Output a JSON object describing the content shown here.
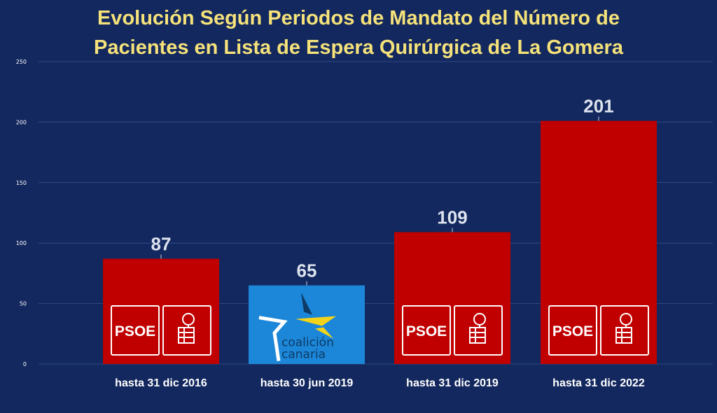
{
  "chart_data": {
    "type": "bar",
    "title_lines": [
      "Evolución Según Periodos de Mandato del Número de",
      "Pacientes en Lista de Espera Quirúrgica de La Gomera"
    ],
    "categories": [
      "hasta 31 dic 2016",
      "hasta 30 jun 2019",
      "hasta 31 dic 2019",
      "hasta 31 dic 2022"
    ],
    "values": [
      87,
      65,
      109,
      201
    ],
    "data_labels": [
      "87",
      "65",
      "109",
      "201"
    ],
    "ylim": [
      0,
      250
    ],
    "yticks": [
      0,
      50,
      100,
      150,
      200,
      250
    ],
    "grid": true,
    "bar_colors": [
      "#c00000",
      "#1c86d8",
      "#c00000",
      "#c00000"
    ],
    "bar_logos": [
      "psoe",
      "coalicion-canaria",
      "psoe",
      "psoe"
    ]
  },
  "logos": {
    "psoe_text": "PSOE",
    "cc_line1": "coalición",
    "cc_line2": "canaria"
  },
  "colors": {
    "background": "#13285e",
    "title": "#f5e27a",
    "grid": "#2d4a86",
    "psoe_red": "#c00000",
    "cc_blue": "#1c86d8",
    "cc_yellow": "#f3d31a",
    "cc_dark": "#0d3b66",
    "labels": "#ffffff",
    "data_labels": "#dde3ee"
  }
}
